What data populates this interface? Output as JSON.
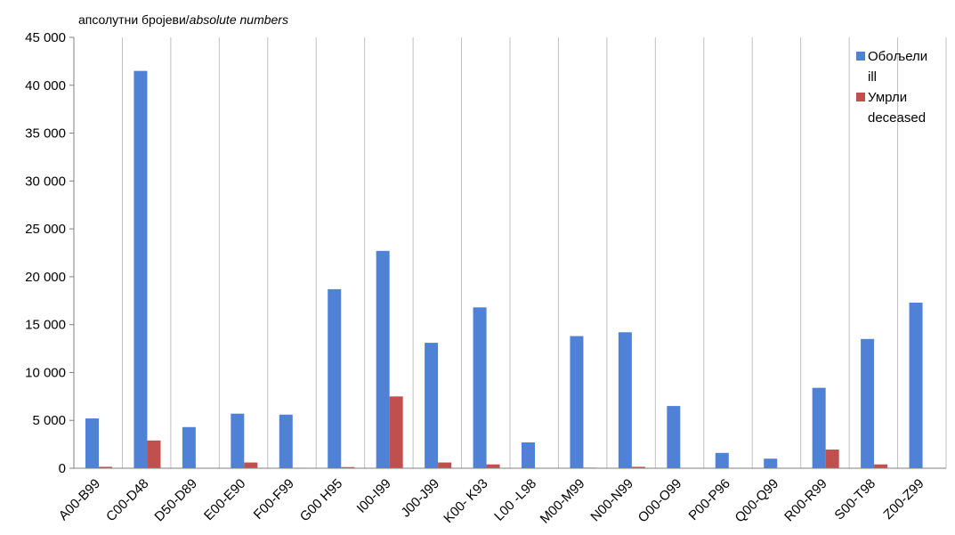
{
  "chart_data": {
    "type": "bar",
    "unit_label_prefix": "апсолутни бројеви/",
    "unit_label_italic": "absolute numbers",
    "categories": [
      "A00-B99",
      "C00-D48",
      "D50-D89",
      "E00-E90",
      "F00-F99",
      "G00 H95",
      "I00-I99",
      "J00-J99",
      "K00- K93",
      "L00 -L98",
      "M00-M99",
      "N00-N99",
      "O00-O99",
      "P00-P96",
      "Q00-Q99",
      "R00-R99",
      "S00-T98",
      "Z00-Z99"
    ],
    "series": [
      {
        "name": "Обољели",
        "name_en": "ill",
        "color": "#4f81d6",
        "values": [
          5200,
          41500,
          4300,
          5700,
          5600,
          18700,
          22700,
          13100,
          16800,
          2700,
          13800,
          14200,
          6500,
          1600,
          1000,
          8400,
          13500,
          17300
        ]
      },
      {
        "name": "Умрли",
        "name_en": "deceased",
        "color": "#c0504d",
        "values": [
          150,
          2900,
          40,
          600,
          50,
          120,
          7500,
          600,
          400,
          20,
          60,
          150,
          0,
          30,
          40,
          1950,
          400,
          0
        ]
      }
    ],
    "y_ticks": [
      "0",
      "5 000",
      "10 000",
      "15 000",
      "20 000",
      "25 000",
      "30 000",
      "35 000",
      "40 000",
      "45 000"
    ],
    "ylim": [
      0,
      45000
    ],
    "grid": "vertical",
    "legend": "top-right"
  }
}
